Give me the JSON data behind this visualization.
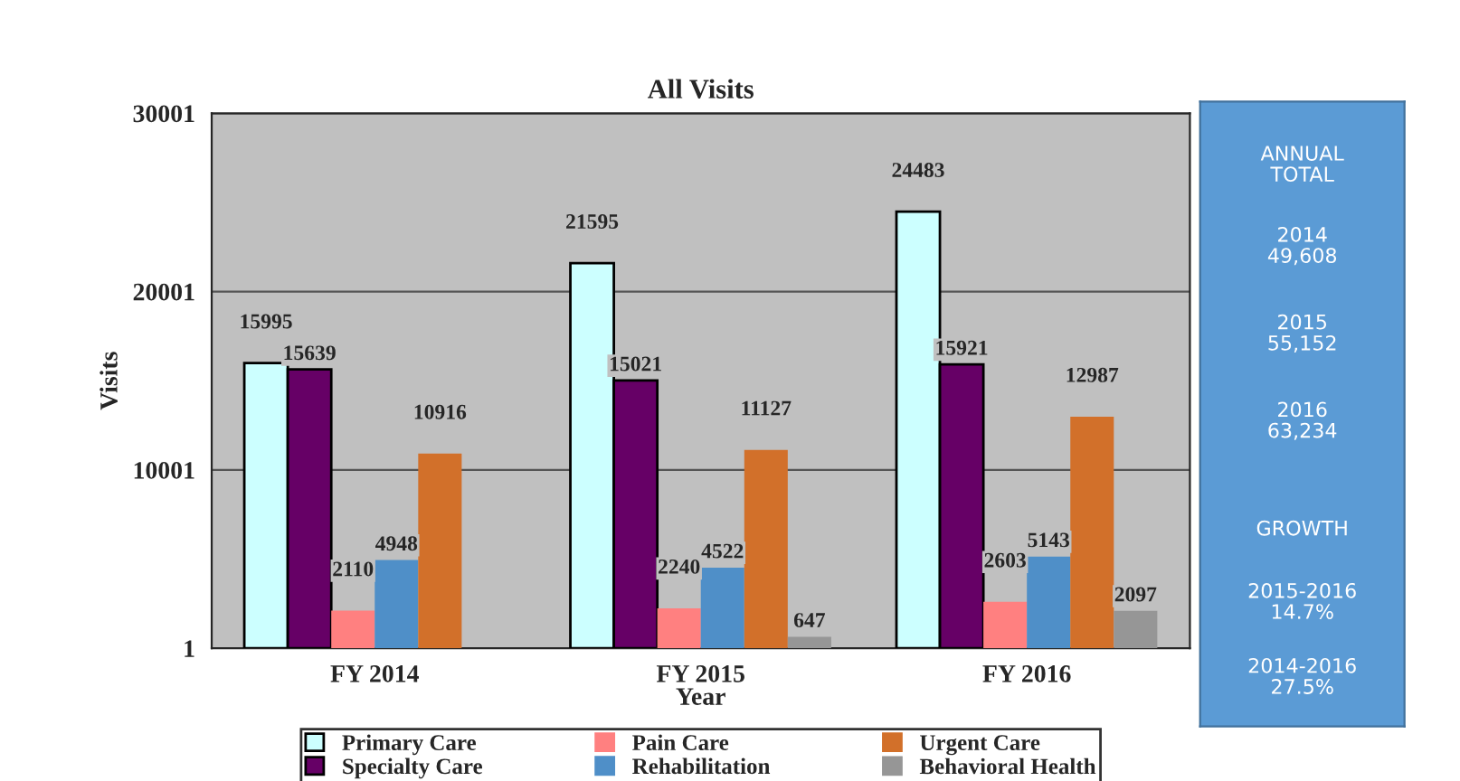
{
  "chart_data": [
    {
      "type": "bar",
      "title": "All Visits",
      "xlabel": "Year",
      "ylabel": "Visits",
      "categories": [
        "FY 2014",
        "FY 2015",
        "FY 2016"
      ],
      "series": [
        {
          "name": "Primary Care",
          "color": "#ccffff",
          "values": [
            15995,
            21595,
            24483
          ]
        },
        {
          "name": "Specialty Care",
          "color": "#660066",
          "values": [
            15639,
            15021,
            15921
          ]
        },
        {
          "name": "Pain Care",
          "color": "#ff8080",
          "values": [
            2110,
            2240,
            2603
          ]
        },
        {
          "name": "Rehabilitation",
          "color": "#4f8fc8",
          "values": [
            4948,
            4522,
            5143
          ]
        },
        {
          "name": "Urgent Care",
          "color": "#d2702a",
          "values": [
            10916,
            11127,
            12987
          ]
        },
        {
          "name": "Behavioral Health",
          "color": "#969696",
          "values": [
            null,
            647,
            2097
          ]
        }
      ],
      "ylim": [
        1,
        30001
      ],
      "yticks": [
        1,
        10001,
        20001,
        30001
      ],
      "grid": "y",
      "legend": "bottom",
      "data_labels": true
    },
    {
      "type": "other",
      "color": "#5b9bd5",
      "annotations": [
        "ANNUAL\nTOTAL",
        "2014\n49,608",
        "2015\n55,152",
        "2016\n63,234",
        "GROWTH",
        "2015-2016\n14.7%",
        "2014-2016\n27.5%"
      ]
    }
  ]
}
